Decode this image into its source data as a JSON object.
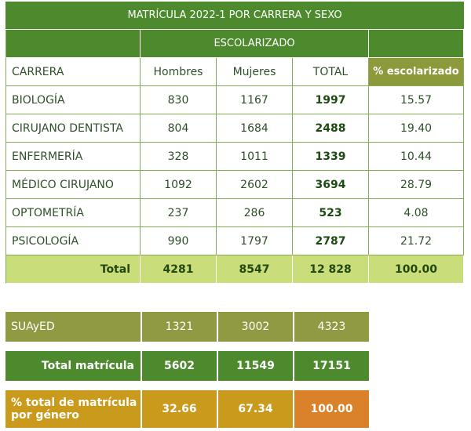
{
  "title": "MATRÍCULA 2022-1 POR CARRERA Y SEXO",
  "header_group": "ESCOLARIZADO",
  "columns": [
    "CARRERA",
    "Hombres",
    "Mujeres",
    "TOTAL",
    "% escolarizado"
  ],
  "rows": [
    {
      "carrera": "BIOLOGÍA",
      "hombres": "830",
      "mujeres": "1167",
      "total": "1997",
      "pct": "15.57"
    },
    {
      "carrera": "CIRUJANO DENTISTA",
      "hombres": "804",
      "mujeres": "1684",
      "total": "2488",
      "pct": "19.40"
    },
    {
      "carrera": "ENFERMERÍA",
      "hombres": "328",
      "mujeres": "1011",
      "total": "1339",
      "pct": "10.44"
    },
    {
      "carrera": "MÉDICO CIRUJANO",
      "hombres": "1092",
      "mujeres": "2602",
      "total": "3694",
      "pct": "28.79"
    },
    {
      "carrera": "OPTOMETRÍA",
      "hombres": "237",
      "mujeres": "286",
      "total": "523",
      "pct": "4.08"
    },
    {
      "carrera": "PSICOLOGÍA",
      "hombres": "990",
      "mujeres": "1797",
      "total": "2787",
      "pct": "21.72"
    }
  ],
  "total_row": {
    "label": "Total",
    "hombres": "4281",
    "mujeres": "8547",
    "total": "12 828",
    "pct": "100.00"
  },
  "suayed": {
    "label": "SUAyED",
    "hombres": "1321",
    "mujeres": "3002",
    "total": "4323"
  },
  "total_matricula": {
    "label": "Total matrícula",
    "hombres": "5602",
    "mujeres": "11549",
    "total": "17151"
  },
  "pct_genero": {
    "label_line1": "% total de matrícula",
    "label_line2": "por género",
    "hombres": "32.66",
    "mujeres": "67.34",
    "total": "100.00"
  },
  "colors": {
    "green_dark": "#4c8a2d",
    "olive": "#8f9a42",
    "lime": "#c9dd7a",
    "gold": "#c99a1c",
    "orange": "#d9822a"
  }
}
